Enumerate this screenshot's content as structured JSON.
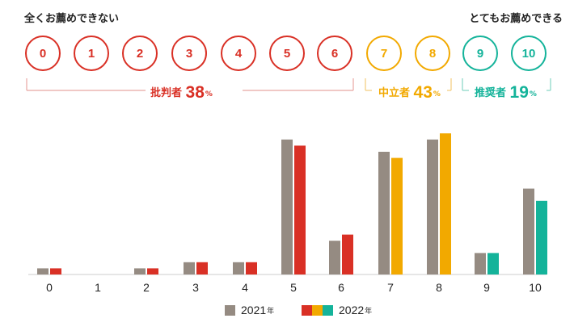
{
  "header": {
    "left_label": "全くお薦めできない",
    "right_label": "とてもお薦めできる"
  },
  "scale": [
    "0",
    "1",
    "2",
    "3",
    "4",
    "5",
    "6",
    "7",
    "8",
    "9",
    "10"
  ],
  "groups": {
    "detractors": {
      "label": "批判者",
      "value": "38",
      "unit": "%",
      "color": "#d93025"
    },
    "passives": {
      "label": "中立者",
      "value": "43",
      "unit": "%",
      "color": "#f2a900"
    },
    "promoters": {
      "label": "推奨者",
      "value": "19",
      "unit": "%",
      "color": "#14b39a"
    }
  },
  "legend": {
    "series_2021": {
      "year": "2021",
      "suffix": "年",
      "color": "#958b82"
    },
    "series_2022": {
      "year": "2022",
      "suffix": "年",
      "colors": [
        "#d93025",
        "#f2a900",
        "#14b39a"
      ]
    }
  },
  "chart_data": {
    "type": "bar",
    "categories": [
      "0",
      "1",
      "2",
      "3",
      "4",
      "5",
      "6",
      "7",
      "8",
      "9",
      "10"
    ],
    "series": [
      {
        "name": "2021年",
        "values": [
          1,
          0,
          1,
          2,
          2,
          22,
          5.5,
          20,
          22,
          3.5,
          14
        ]
      },
      {
        "name": "2022年",
        "values": [
          1,
          0,
          1,
          2,
          2,
          21,
          6.5,
          19,
          23,
          3.5,
          12
        ]
      }
    ],
    "ylim": [
      0,
      25
    ],
    "grid": false,
    "legend_position": "bottom"
  }
}
